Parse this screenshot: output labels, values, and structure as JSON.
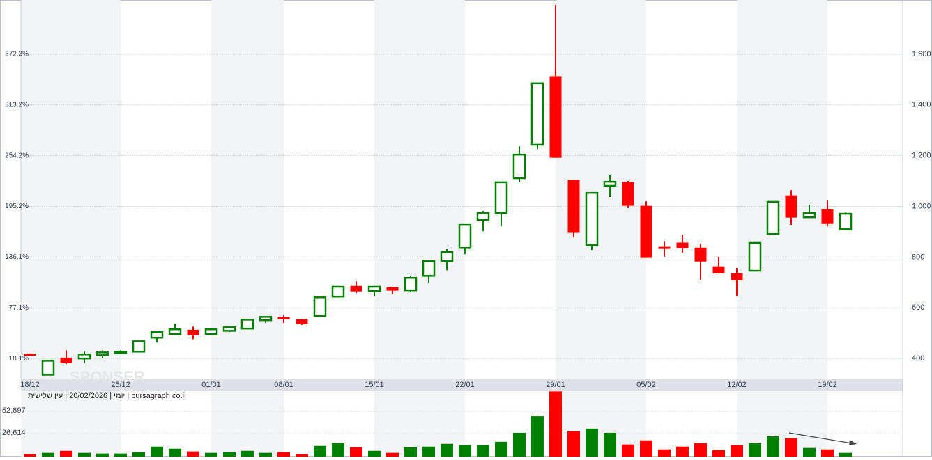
{
  "chart_data": {
    "type": "candlestick",
    "watermark": "SPONSER",
    "caption": "יומי | 20/02/2026 | עין שלישית | bursagraph.co.il",
    "categories": [
      "18/12",
      null,
      null,
      null,
      null,
      "25/12",
      null,
      null,
      null,
      null,
      "01/01",
      null,
      null,
      null,
      "08/01",
      null,
      null,
      null,
      null,
      "15/01",
      null,
      null,
      null,
      null,
      "22/01",
      null,
      null,
      null,
      null,
      "29/01",
      null,
      null,
      null,
      null,
      "05/02",
      null,
      null,
      null,
      null,
      "12/02",
      null,
      null,
      null,
      null,
      "19/02",
      null
    ],
    "open": [
      418,
      336,
      402,
      400,
      413,
      424,
      427,
      482,
      496,
      512,
      496,
      509,
      518,
      551,
      562,
      553,
      567,
      644,
      685,
      666,
      680,
      669,
      726,
      784,
      836,
      946,
      974,
      1111,
      1243,
      1512,
      1103,
      847,
      1081,
      1095,
      1001,
      839,
      856,
      836,
      762,
      735,
      746,
      891,
      1042,
      957,
      987,
      910
    ],
    "high": [
      420,
      393,
      432,
      427,
      432,
      432,
      470,
      509,
      537,
      526,
      515,
      526,
      556,
      567,
      570,
      556,
      641,
      683,
      704,
      685,
      683,
      724,
      786,
      831,
      927,
      982,
      1095,
      1237,
      1485,
      1795,
      1103,
      1053,
      1125,
      1100,
      1020,
      861,
      889,
      853,
      801,
      757,
      856,
      1018,
      1064,
      1007,
      1023,
      976
    ],
    "low": [
      412,
      335,
      378,
      383,
      402,
      421,
      427,
      463,
      496,
      476,
      493,
      504,
      515,
      540,
      540,
      532,
      567,
      644,
      658,
      647,
      655,
      661,
      699,
      748,
      812,
      902,
      922,
      1097,
      1226,
      1193,
      878,
      828,
      1037,
      993,
      798,
      801,
      817,
      710,
      737,
      647,
      746,
      891,
      927,
      957,
      921,
      910
    ],
    "close": [
      416,
      391,
      383,
      416,
      424,
      427,
      468,
      504,
      515,
      493,
      515,
      523,
      553,
      564,
      559,
      537,
      641,
      683,
      666,
      683,
      669,
      718,
      784,
      820,
      927,
      974,
      1095,
      1204,
      1485,
      1193,
      897,
      1053,
      1097,
      1004,
      798,
      836,
      836,
      784,
      737,
      710,
      856,
      1018,
      957,
      974,
      932,
      971
    ],
    "volume": [
      2000,
      3600,
      6000,
      3600,
      2800,
      2800,
      4300,
      11000,
      8500,
      5300,
      3600,
      4300,
      6000,
      3600,
      4300,
      2000,
      11800,
      15100,
      10200,
      6000,
      3600,
      10200,
      11000,
      14300,
      12700,
      12700,
      16700,
      27400,
      47100,
      76700,
      29000,
      32400,
      27400,
      13500,
      18400,
      7700,
      11000,
      15100,
      6800,
      12700,
      15100,
      23300,
      20900,
      9400,
      7700,
      3600
    ],
    "up_color": "#008000",
    "down_color": "#ff0000",
    "ylim": [
      318,
      1800
    ],
    "yticks": [
      400,
      600,
      800,
      {
        "value": 1000,
        "label": "1,000"
      },
      {
        "value": 1200,
        "label": "1,200"
      },
      {
        "value": 1400,
        "label": "1,400"
      },
      {
        "value": 1600,
        "label": "1,600"
      }
    ],
    "y2lim": [
      -6.1,
      431.5
    ],
    "y2ticks": [
      {
        "value": 18.1,
        "label": "18.1%"
      },
      {
        "value": 77.1,
        "label": "77.1%"
      },
      {
        "value": 136.1,
        "label": "136.1%"
      },
      {
        "value": 195.2,
        "label": "195.2%"
      },
      {
        "value": 254.2,
        "label": "254.2%"
      },
      {
        "value": 313.2,
        "label": "313.2%"
      },
      {
        "value": 372.3,
        "label": "372.3%"
      }
    ],
    "volume_ylim": [
      0,
      77000
    ],
    "volume_yticks": [
      {
        "value": 26614,
        "label": "26,614"
      },
      {
        "value": 52897,
        "label": "52,897"
      }
    ],
    "grid": true
  }
}
